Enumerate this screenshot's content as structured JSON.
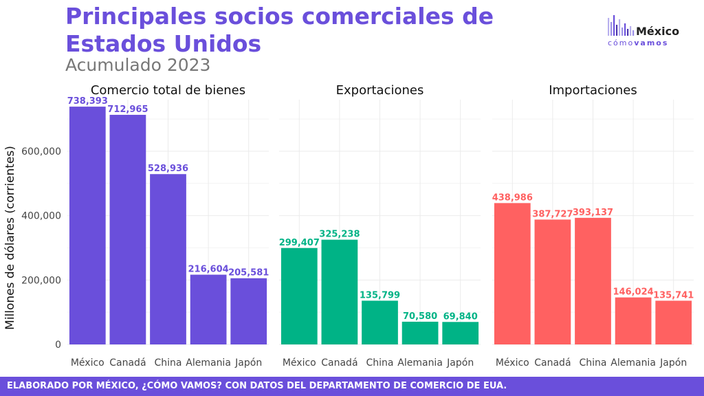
{
  "title": "Principales socios comerciales de Estados Unidos",
  "subtitle": "Acumulado 2023",
  "logo": {
    "text_top": "México",
    "text_bottom_light": "cómo",
    "text_bottom_bold": "vamos",
    "colors": [
      "#b8b0ee",
      "#9b8fe6",
      "#6a4fdb",
      "#4b35b0"
    ]
  },
  "footer": "ELABORADO POR MÉXICO, ¿CÓMO VAMOS? CON DATOS DEL DEPARTAMENTO DE COMERCIO DE EUA.",
  "colors": {
    "accent": "#6a4fdb",
    "total": "#6a4fdb",
    "exports": "#00b386",
    "imports": "#ff6161",
    "grid": "#ebebeb"
  },
  "chart_data": {
    "type": "bar",
    "ylabel": "Millones de dólares (corrientes)",
    "ylim": [
      0,
      760000
    ],
    "yticks": [
      0,
      200000,
      400000,
      600000
    ],
    "ytick_labels": [
      "0",
      "200,000",
      "400,000",
      "600,000"
    ],
    "grid": true,
    "categories": [
      "México",
      "Canadá",
      "China",
      "Alemania",
      "Japón"
    ],
    "panels": [
      {
        "name": "Comercio total de bienes",
        "color": "#6a4fdb",
        "values": [
          738393,
          712965,
          528936,
          216604,
          205581
        ],
        "labels": [
          "738,393",
          "712,965",
          "528,936",
          "216,604",
          "205,581"
        ]
      },
      {
        "name": "Exportaciones",
        "color": "#00b386",
        "values": [
          299407,
          325238,
          135799,
          70580,
          69840
        ],
        "labels": [
          "299,407",
          "325,238",
          "135,799",
          "70,580",
          "69,840"
        ]
      },
      {
        "name": "Importaciones",
        "color": "#ff6161",
        "values": [
          438986,
          387727,
          393137,
          146024,
          135741
        ],
        "labels": [
          "438,986",
          "387,727",
          "393,137",
          "146,024",
          "135,741"
        ]
      }
    ]
  }
}
